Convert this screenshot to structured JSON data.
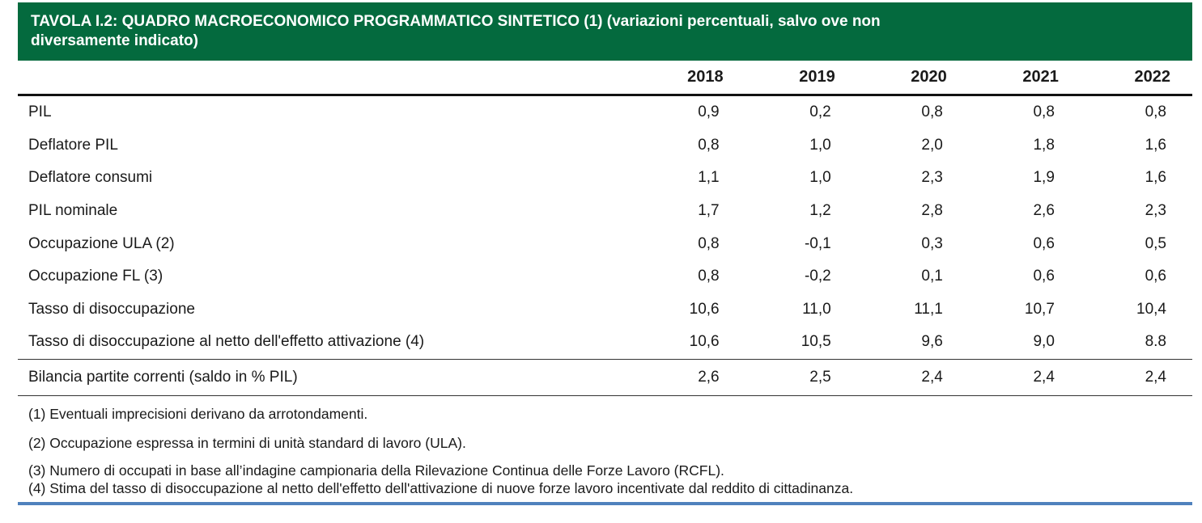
{
  "title": {
    "line1": "TAVOLA I.2: QUADRO MACROECONOMICO PROGRAMMATICO  SINTETICO (1) (variazioni percentuali, salvo ove non",
    "line2": "diversamente indicato)"
  },
  "columns": [
    "2018",
    "2019",
    "2020",
    "2021",
    "2022"
  ],
  "rows": [
    {
      "label": "PIL",
      "values": [
        "0,9",
        "0,2",
        "0,8",
        "0,8",
        "0,8"
      ]
    },
    {
      "label": "Deflatore PIL",
      "values": [
        "0,8",
        "1,0",
        "2,0",
        "1,8",
        "1,6"
      ]
    },
    {
      "label": "Deflatore consumi",
      "values": [
        "1,1",
        "1,0",
        "2,3",
        "1,9",
        "1,6"
      ]
    },
    {
      "label": "PIL nominale",
      "values": [
        "1,7",
        "1,2",
        "2,8",
        "2,6",
        "2,3"
      ]
    },
    {
      "label": "Occupazione ULA (2)",
      "values": [
        "0,8",
        "-0,1",
        "0,3",
        "0,6",
        "0,5"
      ]
    },
    {
      "label": "Occupazione FL (3)",
      "values": [
        "0,8",
        "-0,2",
        "0,1",
        "0,6",
        "0,6"
      ]
    },
    {
      "label": "Tasso di disoccupazione",
      "values": [
        "10,6",
        "11,0",
        "11,1",
        "10,7",
        "10,4"
      ]
    },
    {
      "label": "Tasso di disoccupazione al netto dell'effetto attivazione (4)",
      "values": [
        "10,6",
        "10,5",
        "9,6",
        "9,0",
        "8.8"
      ]
    },
    {
      "label": "Bilancia partite correnti (saldo in % PIL)",
      "values": [
        "2,6",
        "2,5",
        "2,4",
        "2,4",
        "2,4"
      ]
    }
  ],
  "notes": [
    "(1) Eventuali imprecisioni derivano da arrotondamenti.",
    "(2) Occupazione espressa in termini di unità standard di lavoro (ULA).",
    "(3) Numero di occupati in base all’indagine campionaria della Rilevazione Continua delle Forze Lavoro (RCFL).",
    "(4) Stima del tasso di disoccupazione al netto dell'effetto dell'attivazione di nuove forze lavoro incentivate dal reddito di cittadinanza."
  ],
  "colors": {
    "title_bg": "#046a3e",
    "bottom_rule": "#4f81bd"
  }
}
